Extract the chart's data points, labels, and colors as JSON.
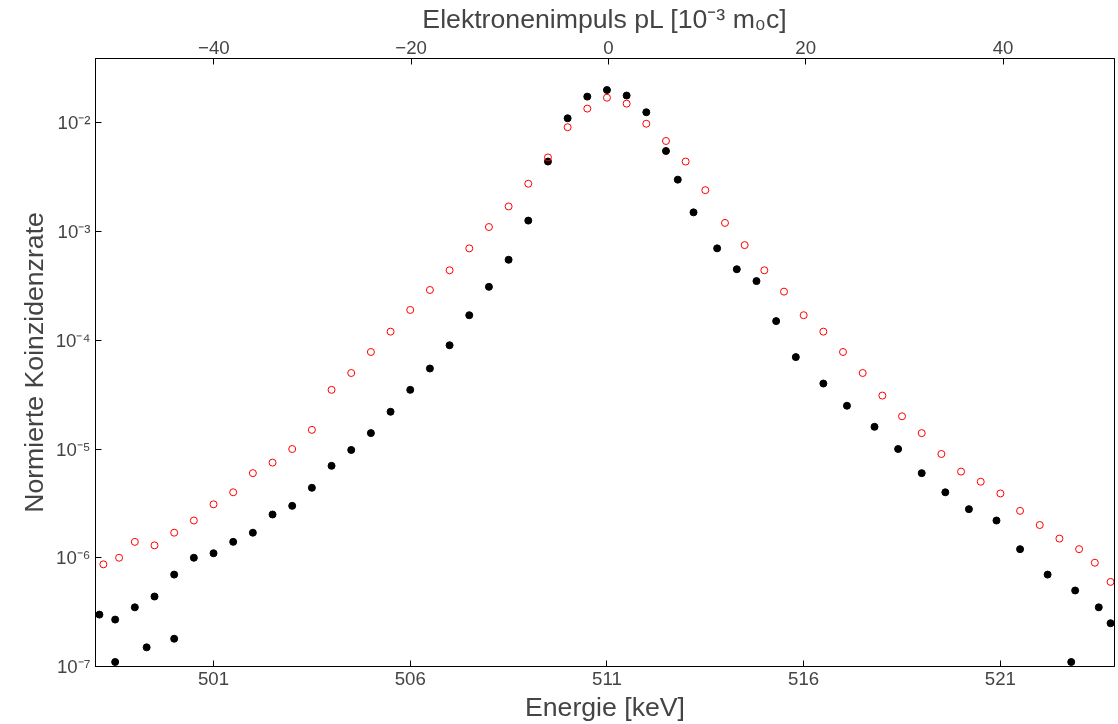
{
  "chart_data": {
    "type": "scatter",
    "xlabel": "Energie [keV]",
    "ylabel": "Normierte Koinzidenzrate",
    "x2label": "Elektronenimpuls pL [10⁻³ m₀c]",
    "log": "y",
    "grid": false,
    "marker": "circle",
    "xlim": [
      498.0,
      523.9
    ],
    "xticks": [
      501,
      506,
      511,
      516,
      521
    ],
    "x2lim": [
      -52.0,
      51.3
    ],
    "x2ticks": [
      -40,
      -20,
      0,
      20,
      40
    ],
    "ylim": [
      1e-07,
      0.039
    ],
    "yticks": [
      {
        "value": 1e-07,
        "label": "10⁻⁷"
      },
      {
        "value": 1e-06,
        "label": "10⁻⁶"
      },
      {
        "value": 1e-05,
        "label": "10⁻⁵"
      },
      {
        "value": 0.0001,
        "label": "10⁻⁴"
      },
      {
        "value": 0.001,
        "label": "10⁻³"
      },
      {
        "value": 0.01,
        "label": "10⁻²"
      }
    ],
    "series": [
      {
        "color": "#000000",
        "x": [
          498.1,
          498.5,
          498.5,
          499.0,
          499.3,
          499.5,
          500.0,
          500.0,
          500.5,
          501.0,
          501.5,
          502.0,
          502.5,
          503.0,
          503.5,
          504.0,
          504.5,
          505.0,
          505.5,
          506.0,
          506.5,
          507.0,
          507.5,
          508.0,
          508.5,
          509.0,
          509.5,
          510.0,
          510.5,
          511.0,
          511.5,
          512.0,
          512.5,
          512.8,
          513.2,
          513.8,
          514.3,
          514.8,
          515.3,
          515.8,
          516.5,
          517.1,
          517.8,
          518.4,
          519.0,
          519.6,
          520.2,
          520.9,
          521.5,
          522.2,
          522.8,
          522.9,
          523.5,
          523.8
        ],
        "values": [
          3e-07,
          2.7e-07,
          1.1e-07,
          3.5e-07,
          1.5e-07,
          4.4e-07,
          7e-07,
          1.8e-07,
          1e-06,
          1.1e-06,
          1.4e-06,
          1.7e-06,
          2.5e-06,
          3e-06,
          4.4e-06,
          7e-06,
          9.8e-06,
          1.4e-05,
          2.2e-05,
          3.5e-05,
          5.5e-05,
          9e-05,
          0.00017,
          0.00031,
          0.00055,
          0.00126,
          0.0044,
          0.011,
          0.0174,
          0.02,
          0.0178,
          0.0125,
          0.0055,
          0.003,
          0.0015,
          0.0007,
          0.00045,
          0.00035,
          0.00015,
          7e-05,
          4e-05,
          2.5e-05,
          1.6e-05,
          1e-05,
          6e-06,
          4e-06,
          2.8e-06,
          2.2e-06,
          1.2e-06,
          7e-07,
          1.1e-07,
          5e-07,
          3.5e-07,
          2.5e-07
        ]
      },
      {
        "color": "#ff0000",
        "x": [
          498.2,
          498.6,
          499.0,
          499.5,
          500.0,
          500.5,
          501.0,
          501.5,
          502.0,
          502.5,
          503.0,
          503.5,
          504.0,
          504.5,
          505.0,
          505.5,
          506.0,
          506.5,
          507.0,
          507.5,
          508.0,
          508.5,
          509.0,
          509.5,
          510.0,
          510.5,
          511.0,
          511.5,
          512.0,
          512.5,
          513.0,
          513.5,
          514.0,
          514.5,
          515.0,
          515.5,
          516.0,
          516.5,
          517.0,
          517.5,
          518.0,
          518.5,
          519.0,
          519.5,
          520.0,
          520.5,
          521.0,
          521.5,
          522.0,
          522.5,
          523.0,
          523.4,
          523.8
        ],
        "values": [
          8.7e-07,
          1e-06,
          1.4e-06,
          1.3e-06,
          1.7e-06,
          2.2e-06,
          3.1e-06,
          4e-06,
          6e-06,
          7.5e-06,
          1e-05,
          1.5e-05,
          3.5e-05,
          5e-05,
          7.8e-05,
          0.00012,
          0.00019,
          0.00029,
          0.00044,
          0.0007,
          0.0011,
          0.0017,
          0.00275,
          0.0048,
          0.0091,
          0.0135,
          0.017,
          0.015,
          0.0098,
          0.0068,
          0.0044,
          0.0024,
          0.0012,
          0.00075,
          0.00044,
          0.00028,
          0.00017,
          0.00012,
          7.8e-05,
          5e-05,
          3.1e-05,
          2e-05,
          1.4e-05,
          9e-06,
          6.2e-06,
          5e-06,
          3.9e-06,
          2.7e-06,
          2e-06,
          1.5e-06,
          1.2e-06,
          9e-07,
          6e-07
        ]
      }
    ]
  }
}
